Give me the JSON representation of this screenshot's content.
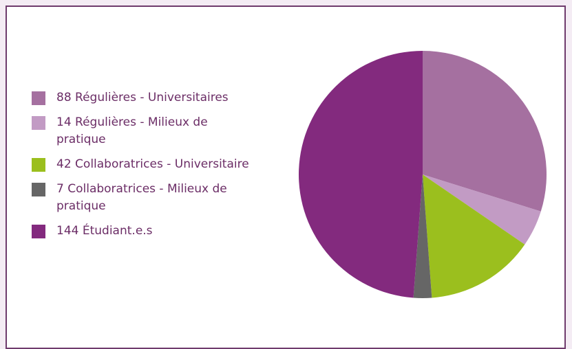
{
  "chart_data": {
    "type": "pie",
    "categories": [
      "Régulières - Universitaires",
      "Régulières - Milieux de pratique",
      "Collaboratrices - Universitaire",
      "Collaboratrices - Milieux de pratique",
      "Étudiant.e.s"
    ],
    "values": [
      88,
      14,
      42,
      7,
      144
    ],
    "colors": [
      "#a570a0",
      "#c29bc4",
      "#9bbf1e",
      "#666666",
      "#832a7e"
    ],
    "legend": "left"
  }
}
